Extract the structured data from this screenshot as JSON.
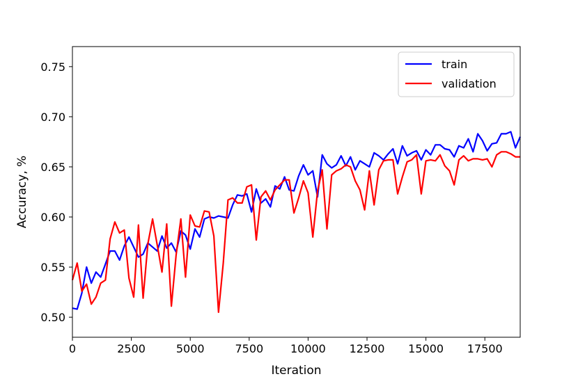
{
  "chart_data": {
    "type": "line",
    "title": "",
    "xlabel": "Iteration",
    "ylabel": "Accuracy, %",
    "xlim": [
      0,
      19000
    ],
    "ylim": [
      0.48,
      0.77
    ],
    "xticks": [
      0,
      2500,
      5000,
      7500,
      10000,
      12500,
      15000,
      17500
    ],
    "xtick_labels": [
      "0",
      "2500",
      "5000",
      "7500",
      "10000",
      "12500",
      "15000",
      "17500"
    ],
    "yticks": [
      0.5,
      0.55,
      0.6,
      0.65,
      0.7,
      0.75
    ],
    "ytick_labels": [
      "0.50",
      "0.55",
      "0.60",
      "0.65",
      "0.70",
      "0.75"
    ],
    "grid": false,
    "legend_position": "top-right",
    "series": [
      {
        "name": "train",
        "color": "#0000ff",
        "x": [
          0,
          200,
          400,
          600,
          800,
          1000,
          1200,
          1400,
          1600,
          1800,
          2000,
          2200,
          2400,
          2600,
          2800,
          3000,
          3200,
          3400,
          3600,
          3800,
          4000,
          4200,
          4400,
          4600,
          4800,
          5000,
          5200,
          5400,
          5600,
          5800,
          6000,
          6200,
          6400,
          6600,
          6800,
          7000,
          7200,
          7400,
          7600,
          7800,
          8000,
          8200,
          8400,
          8600,
          8800,
          9000,
          9200,
          9400,
          9600,
          9800,
          10000,
          10200,
          10400,
          10600,
          10800,
          11000,
          11200,
          11400,
          11600,
          11800,
          12000,
          12200,
          12400,
          12600,
          12800,
          13000,
          13200,
          13400,
          13600,
          13800,
          14000,
          14200,
          14400,
          14600,
          14800,
          15000,
          15200,
          15400,
          15600,
          15800,
          16000,
          16200,
          16400,
          16600,
          16800,
          17000,
          17200,
          17400,
          17600,
          17800,
          18000,
          18200,
          18400,
          18600,
          18800,
          19000
        ],
        "y": [
          0.509,
          0.508,
          0.524,
          0.55,
          0.534,
          0.545,
          0.54,
          0.553,
          0.566,
          0.566,
          0.557,
          0.571,
          0.58,
          0.57,
          0.56,
          0.563,
          0.574,
          0.57,
          0.566,
          0.581,
          0.569,
          0.574,
          0.565,
          0.586,
          0.582,
          0.568,
          0.588,
          0.58,
          0.598,
          0.6,
          0.599,
          0.601,
          0.6,
          0.599,
          0.612,
          0.622,
          0.621,
          0.623,
          0.605,
          0.628,
          0.614,
          0.618,
          0.61,
          0.631,
          0.628,
          0.64,
          0.627,
          0.626,
          0.641,
          0.652,
          0.642,
          0.646,
          0.62,
          0.662,
          0.653,
          0.649,
          0.652,
          0.661,
          0.651,
          0.66,
          0.647,
          0.656,
          0.653,
          0.65,
          0.664,
          0.661,
          0.657,
          0.663,
          0.668,
          0.653,
          0.671,
          0.661,
          0.664,
          0.666,
          0.657,
          0.667,
          0.662,
          0.672,
          0.672,
          0.668,
          0.667,
          0.66,
          0.671,
          0.669,
          0.678,
          0.665,
          0.683,
          0.676,
          0.666,
          0.673,
          0.674,
          0.683,
          0.683,
          0.685,
          0.669,
          0.68
        ]
      },
      {
        "name": "validation",
        "color": "#ff0000",
        "x": [
          0,
          200,
          400,
          600,
          800,
          1000,
          1200,
          1400,
          1600,
          1800,
          2000,
          2200,
          2400,
          2600,
          2800,
          3000,
          3200,
          3400,
          3600,
          3800,
          4000,
          4200,
          4400,
          4600,
          4800,
          5000,
          5200,
          5400,
          5600,
          5800,
          6000,
          6200,
          6400,
          6600,
          6800,
          7000,
          7200,
          7400,
          7600,
          7800,
          8000,
          8200,
          8400,
          8600,
          8800,
          9000,
          9200,
          9400,
          9600,
          9800,
          10000,
          10200,
          10400,
          10600,
          10800,
          11000,
          11200,
          11400,
          11600,
          11800,
          12000,
          12200,
          12400,
          12600,
          12800,
          13000,
          13200,
          13400,
          13600,
          13800,
          14000,
          14200,
          14400,
          14600,
          14800,
          15000,
          15200,
          15400,
          15600,
          15800,
          16000,
          16200,
          16400,
          16600,
          16800,
          17000,
          17200,
          17400,
          17600,
          17800,
          18000,
          18200,
          18400,
          18600,
          18800,
          19000
        ],
        "y": [
          0.537,
          0.554,
          0.526,
          0.533,
          0.513,
          0.52,
          0.534,
          0.537,
          0.578,
          0.595,
          0.584,
          0.587,
          0.539,
          0.52,
          0.592,
          0.519,
          0.573,
          0.598,
          0.572,
          0.545,
          0.593,
          0.511,
          0.562,
          0.598,
          0.54,
          0.602,
          0.591,
          0.59,
          0.606,
          0.605,
          0.581,
          0.505,
          0.554,
          0.617,
          0.619,
          0.614,
          0.614,
          0.63,
          0.632,
          0.577,
          0.62,
          0.626,
          0.617,
          0.627,
          0.632,
          0.637,
          0.637,
          0.604,
          0.619,
          0.636,
          0.624,
          0.58,
          0.626,
          0.647,
          0.588,
          0.642,
          0.646,
          0.648,
          0.652,
          0.65,
          0.636,
          0.627,
          0.607,
          0.646,
          0.612,
          0.647,
          0.656,
          0.657,
          0.657,
          0.623,
          0.64,
          0.655,
          0.657,
          0.662,
          0.623,
          0.656,
          0.657,
          0.656,
          0.662,
          0.651,
          0.646,
          0.632,
          0.657,
          0.661,
          0.656,
          0.658,
          0.658,
          0.657,
          0.658,
          0.65,
          0.662,
          0.665,
          0.665,
          0.663,
          0.66,
          0.66
        ]
      }
    ]
  }
}
